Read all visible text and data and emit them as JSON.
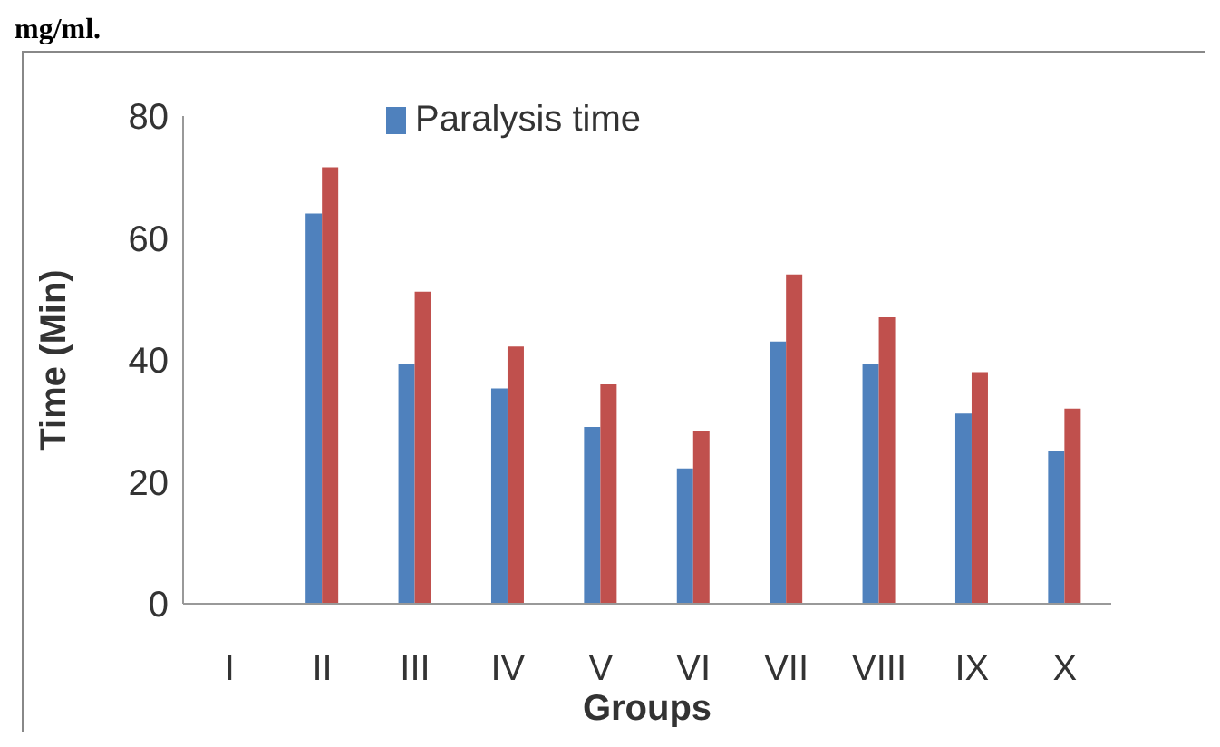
{
  "chart_data": {
    "type": "bar",
    "annotations": [
      "mg/ml."
    ],
    "xlabel": "Groups",
    "ylabel": "Time (Min)",
    "categories": [
      "I",
      "II",
      "III",
      "IV",
      "V",
      "VI",
      "VII",
      "VIII",
      "IX",
      "X"
    ],
    "series": [
      {
        "name": "Paralysis time",
        "color": "#4f81bd",
        "values": [
          null,
          64,
          39.3,
          35.3,
          29,
          22.2,
          43,
          39.3,
          31.2,
          25
        ]
      },
      {
        "color": "#c0504d",
        "values": [
          null,
          71.6,
          51.2,
          42.2,
          36,
          28.4,
          54,
          47,
          38,
          32
        ]
      }
    ],
    "ylim": [
      0,
      80
    ],
    "yticks": [
      0,
      20,
      40,
      60,
      80
    ],
    "grid": false,
    "legend": "top"
  }
}
